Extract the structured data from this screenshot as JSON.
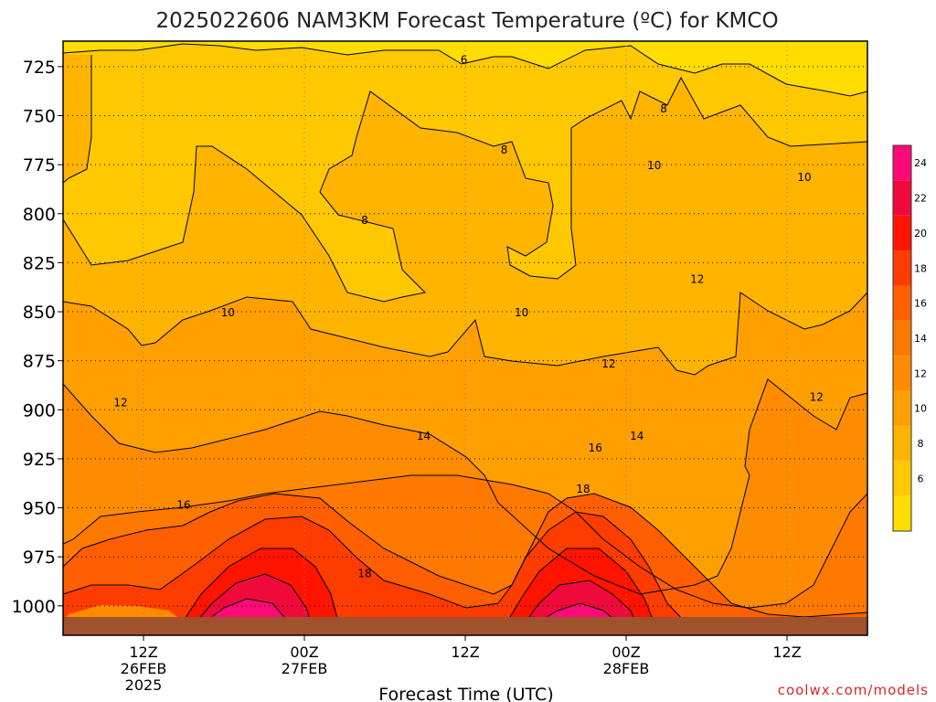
{
  "chart_data": {
    "type": "heatmap",
    "title": "2025022606 NAM3KM Forecast Temperature (ºC) for KMCO",
    "xlabel": "Forecast Time (UTC)",
    "ylabel": "",
    "credit": "coolwx.com/models",
    "y_axis": {
      "ticks": [
        725,
        750,
        775,
        800,
        825,
        850,
        875,
        900,
        925,
        950,
        975,
        1000
      ],
      "tick_labels": [
        "725",
        "750",
        "775",
        "800",
        "825",
        "850",
        "875",
        "900",
        "925",
        "950",
        "975",
        "1000"
      ],
      "range": [
        712,
        1015
      ],
      "unit": "hPa"
    },
    "x_axis": {
      "range_hours": [
        6,
        66
      ],
      "ticks": [
        {
          "hour": 12,
          "lines": [
            "12Z",
            "26FEB",
            "2025"
          ]
        },
        {
          "hour": 24,
          "lines": [
            "00Z",
            "27FEB"
          ]
        },
        {
          "hour": 36,
          "lines": [
            "12Z"
          ]
        },
        {
          "hour": 48,
          "lines": [
            "00Z",
            "28FEB"
          ]
        },
        {
          "hour": 60,
          "lines": [
            "12Z"
          ]
        }
      ]
    },
    "grid": true,
    "colorbar": {
      "levels": [
        4,
        6,
        8,
        10,
        12,
        14,
        16,
        18,
        20,
        22,
        24,
        26
      ],
      "labels": [
        "6",
        "8",
        "10",
        "12",
        "14",
        "16",
        "18",
        "20",
        "22",
        "24"
      ],
      "colors": [
        "#ffdd00",
        "#ffc800",
        "#ffb400",
        "#ffa000",
        "#ff8c00",
        "#ff7800",
        "#ff5f00",
        "#ff3c00",
        "#ff1400",
        "#f00a3c",
        "#ff0a78"
      ]
    },
    "contour_labels": [
      {
        "text": "6",
        "hour": 35.9,
        "p": 721
      },
      {
        "text": "8",
        "hour": 50.8,
        "p": 746
      },
      {
        "text": "8",
        "hour": 38.9,
        "p": 767
      },
      {
        "text": "8",
        "hour": 28.5,
        "p": 803
      },
      {
        "text": "10",
        "hour": 50.1,
        "p": 775
      },
      {
        "text": "10",
        "hour": 61.3,
        "p": 781
      },
      {
        "text": "10",
        "hour": 18.3,
        "p": 850
      },
      {
        "text": "10",
        "hour": 40.2,
        "p": 850
      },
      {
        "text": "12",
        "hour": 53.3,
        "p": 833
      },
      {
        "text": "12",
        "hour": 46.7,
        "p": 876
      },
      {
        "text": "12",
        "hour": 62.2,
        "p": 893
      },
      {
        "text": "12",
        "hour": 10.3,
        "p": 896
      },
      {
        "text": "14",
        "hour": 32.9,
        "p": 913
      },
      {
        "text": "14",
        "hour": 48.8,
        "p": 913
      },
      {
        "text": "16",
        "hour": 45.7,
        "p": 919
      },
      {
        "text": "16",
        "hour": 15.0,
        "p": 948
      },
      {
        "text": "18",
        "hour": 44.8,
        "p": 940
      },
      {
        "text": "18",
        "hour": 28.5,
        "p": 983
      }
    ]
  }
}
